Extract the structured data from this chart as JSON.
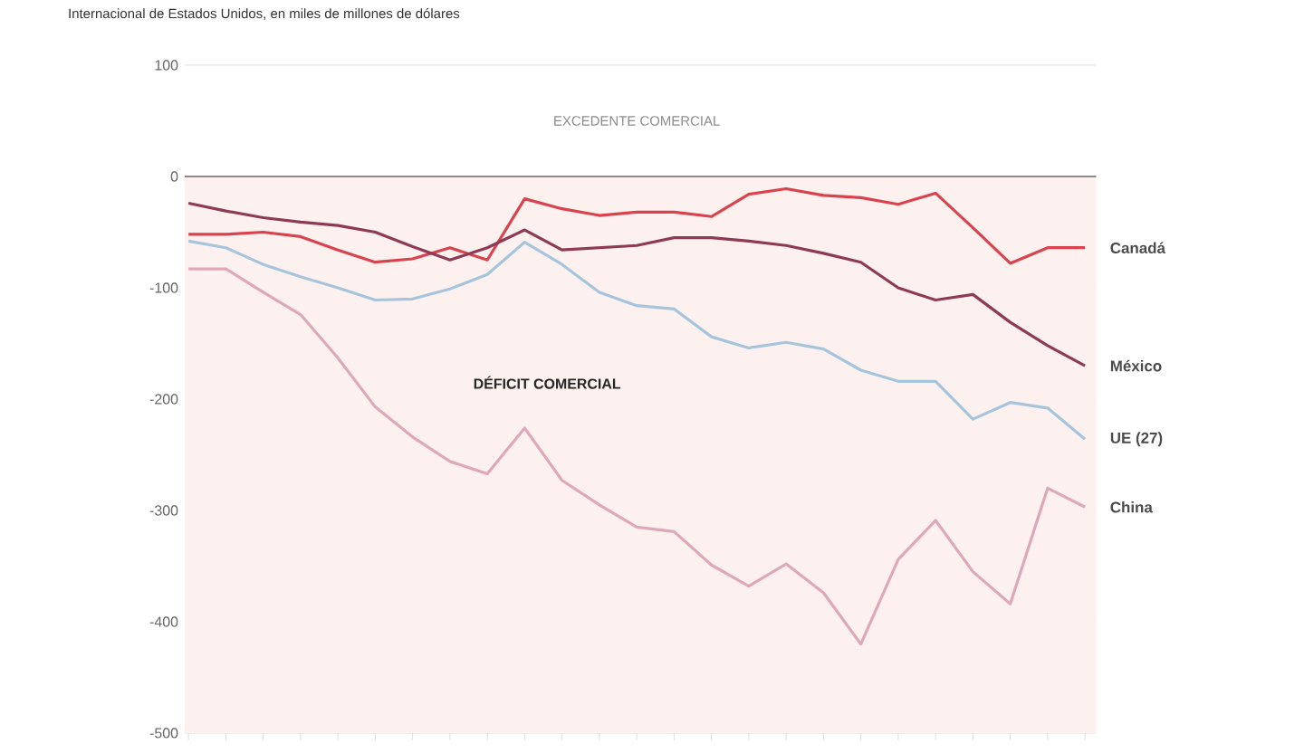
{
  "chart_data": {
    "type": "line",
    "subtitle": "Internacional de Estados Unidos, en miles de millones de dólares",
    "categories": [
      null,
      null,
      null,
      null,
      null,
      null,
      null,
      null,
      null,
      null,
      null,
      null,
      null,
      null,
      null,
      null,
      null,
      null,
      null,
      null,
      null,
      null,
      null,
      null,
      null
    ],
    "series": [
      {
        "name": "Canadá",
        "color": "#d9434e",
        "values": [
          -52,
          -52,
          -50,
          -54,
          -66,
          -77,
          -74,
          -64,
          -75,
          -20,
          -29,
          -35,
          -32,
          -32,
          -36,
          -16,
          -11,
          -17,
          -19,
          -25,
          -15,
          -46,
          -78,
          -64,
          -64
        ]
      },
      {
        "name": "México",
        "color": "#8e3a55",
        "values": [
          -24,
          -31,
          -37,
          -41,
          -44,
          -50,
          -63,
          -75,
          -64,
          -48,
          -66,
          -64,
          -62,
          -55,
          -55,
          -58,
          -62,
          -69,
          -77,
          -100,
          -111,
          -106,
          -131,
          -152,
          -170
        ]
      },
      {
        "name": "UE (27)",
        "color": "#a7c4dd",
        "values": [
          -58,
          -64,
          -79,
          -90,
          -100,
          -111,
          -110,
          -101,
          -88,
          -59,
          -79,
          -104,
          -116,
          -119,
          -144,
          -154,
          -149,
          -155,
          -174,
          -184,
          -184,
          -218,
          -203,
          -208,
          -236
        ]
      },
      {
        "name": "China",
        "color": "#dfa8b9",
        "values": [
          -83,
          -83,
          -104,
          -124,
          -163,
          -207,
          -234,
          -256,
          -267,
          -226,
          -273,
          -295,
          -315,
          -319,
          -349,
          -368,
          -348,
          -374,
          -420,
          -344,
          -309,
          -355,
          -384,
          -280,
          -297
        ]
      }
    ],
    "ylim": [
      -500,
      100
    ],
    "yticks": [
      -500,
      -400,
      -300,
      -200,
      -100,
      0,
      100
    ],
    "grid": "y",
    "tick_labels": "y",
    "ref_lines": [
      {
        "axis": "y",
        "value": 0,
        "color": "#8a8a8a"
      }
    ],
    "bands": [
      {
        "axis": "y",
        "from": -500,
        "to": 0,
        "label": "DÉFICIT COMERCIAL",
        "color": "#fcf1ef"
      }
    ],
    "annotations": [
      "EXCEDENTE COMERCIAL"
    ]
  }
}
